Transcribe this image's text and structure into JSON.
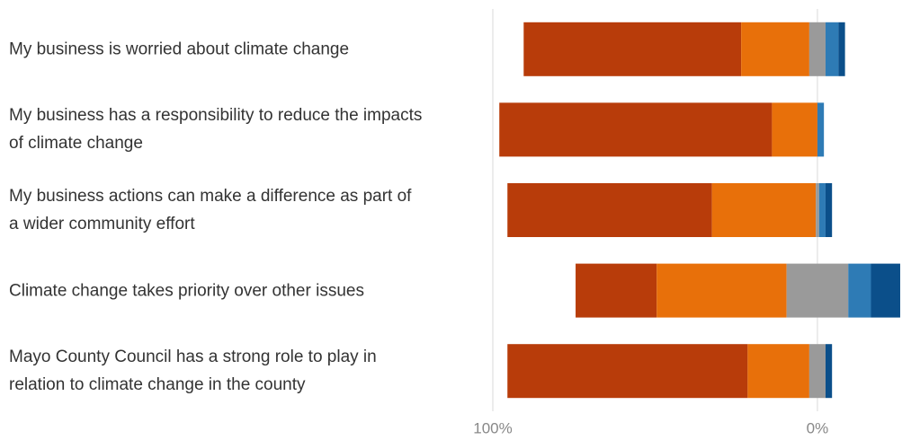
{
  "chart_data": {
    "type": "diverging-bar",
    "categories": [
      "My business is worried about climate change",
      "My business has a responsibility to reduce the impacts of climate change",
      "My business actions can make a difference as part of a wider community effort",
      "Climate change takes priority over other issues",
      "Mayo County Council has a strong role to play in relation to climate change in the county"
    ],
    "series": [
      {
        "color": "#b83c0a",
        "values": [
          67,
          84,
          63,
          25,
          74
        ]
      },
      {
        "color": "#e8700a",
        "values": [
          21,
          14,
          32,
          40,
          19
        ]
      },
      {
        "color": "#9a9a9a",
        "values": [
          5,
          0,
          1,
          19,
          5
        ]
      },
      {
        "color": "#2e7bb5",
        "values": [
          4,
          2,
          2,
          7,
          0
        ]
      },
      {
        "color": "#0b4f8a",
        "values": [
          2,
          0,
          2,
          9,
          2
        ]
      }
    ],
    "neutral_series": 2,
    "xlim": [
      100,
      -28
    ],
    "xticks": [
      {
        "value": 100,
        "label": "100%"
      },
      {
        "value": 0,
        "label": "0%"
      }
    ],
    "grid": true
  }
}
